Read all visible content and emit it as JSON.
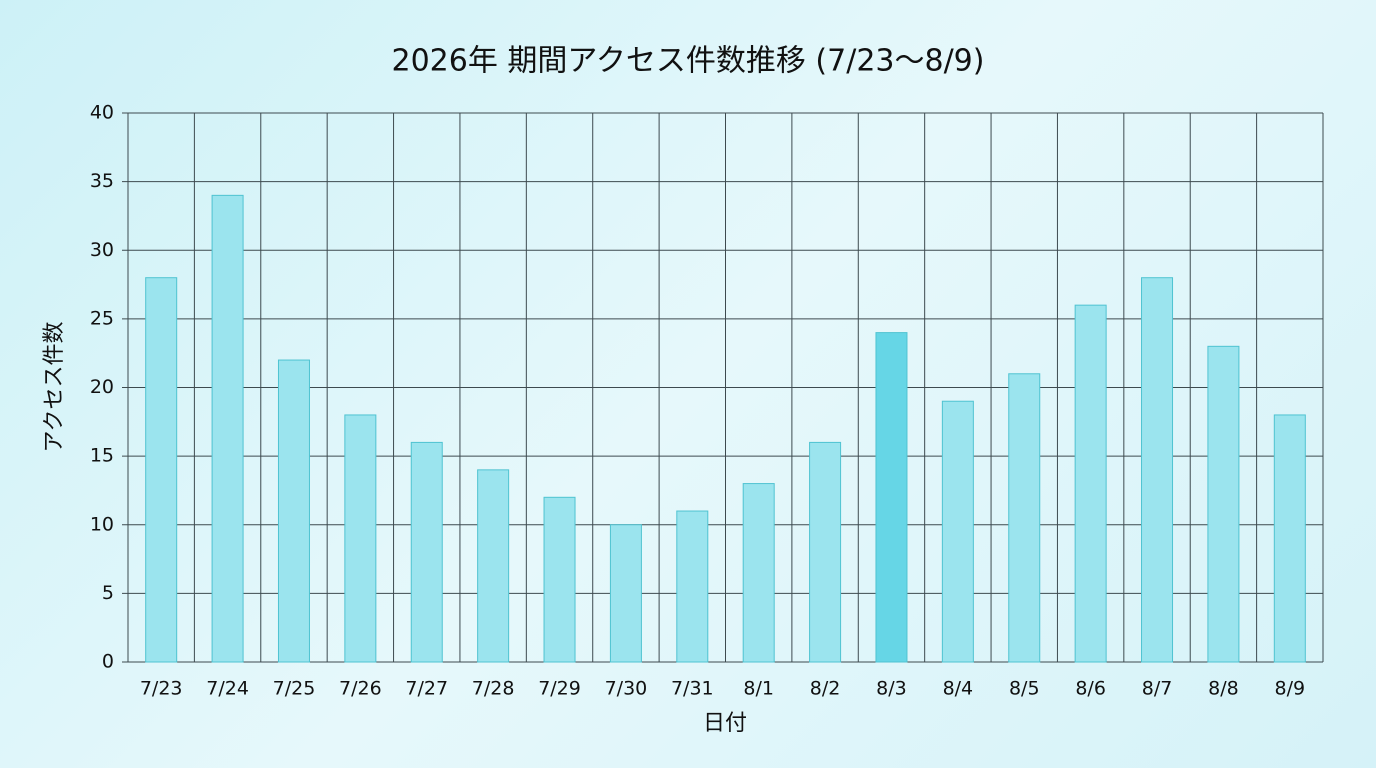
{
  "chart_data": {
    "type": "bar",
    "title": "2026年 期間アクセス件数推移 (7/23〜8/9)",
    "x_label": "日付",
    "y_label": "アクセス件数",
    "categories": [
      "7/23",
      "7/24",
      "7/25",
      "7/26",
      "7/27",
      "7/28",
      "7/29",
      "7/30",
      "7/31",
      "8/1",
      "8/2",
      "8/3",
      "8/4",
      "8/5",
      "8/6",
      "8/7",
      "8/8",
      "8/9"
    ],
    "values": [
      28,
      34,
      22,
      18,
      16,
      14,
      12,
      10,
      11,
      13,
      16,
      24,
      19,
      21,
      26,
      28,
      23,
      18
    ],
    "colors": [
      "#9be4ee",
      "#9be4ee",
      "#9be4ee",
      "#9be4ee",
      "#9be4ee",
      "#9be4ee",
      "#9be4ee",
      "#9be4ee",
      "#9be4ee",
      "#9be4ee",
      "#9be4ee",
      "#66d6e6",
      "#9be4ee",
      "#9be4ee",
      "#9be4ee",
      "#9be4ee",
      "#9be4ee",
      "#9be4ee"
    ],
    "edge_color": "#4fc3d1",
    "ylim": [
      0,
      40
    ],
    "yticks": [
      0,
      5,
      10,
      15,
      20,
      25,
      30,
      35,
      40
    ],
    "grid": true
  }
}
